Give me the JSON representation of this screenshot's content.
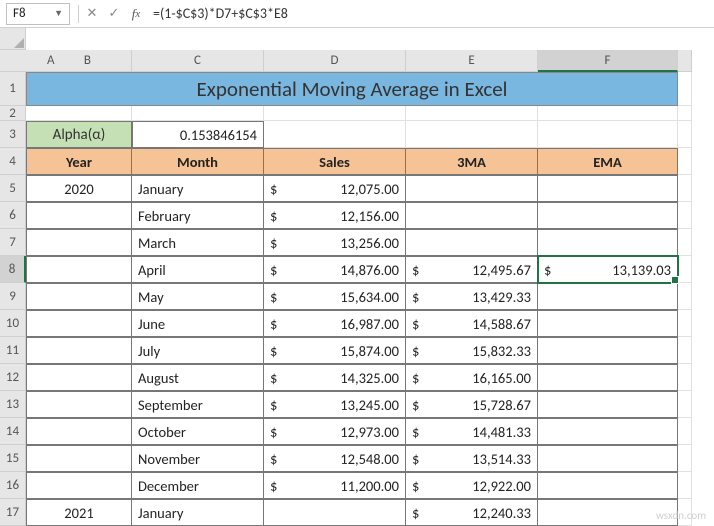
{
  "name_box": "F8",
  "formula": "=(1-$C$3)*D7+$C$3*E8",
  "columns": [
    "A",
    "B",
    "C",
    "D",
    "E",
    "F"
  ],
  "selected_col": "F",
  "selected_row": "8",
  "title": "Exponential Moving Average in Excel",
  "alpha": {
    "label": "Alpha(α)",
    "value": "0.153846154"
  },
  "headers": {
    "year": "Year",
    "month": "Month",
    "sales": "Sales",
    "ma": "3MA",
    "ema": "EMA"
  },
  "currency": "$",
  "rows": [
    {
      "n": 5,
      "year": "2020",
      "month": "January",
      "sales": "12,075.00",
      "ma": "",
      "ema": ""
    },
    {
      "n": 6,
      "year": "",
      "month": "February",
      "sales": "12,156.00",
      "ma": "",
      "ema": ""
    },
    {
      "n": 7,
      "year": "",
      "month": "March",
      "sales": "13,256.00",
      "ma": "",
      "ema": ""
    },
    {
      "n": 8,
      "year": "",
      "month": "April",
      "sales": "14,876.00",
      "ma": "12,495.67",
      "ema": "13,139.03"
    },
    {
      "n": 9,
      "year": "",
      "month": "May",
      "sales": "15,634.00",
      "ma": "13,429.33",
      "ema": ""
    },
    {
      "n": 10,
      "year": "",
      "month": "June",
      "sales": "16,987.00",
      "ma": "14,588.67",
      "ema": ""
    },
    {
      "n": 11,
      "year": "",
      "month": "July",
      "sales": "15,874.00",
      "ma": "15,832.33",
      "ema": ""
    },
    {
      "n": 12,
      "year": "",
      "month": "August",
      "sales": "14,325.00",
      "ma": "16,165.00",
      "ema": ""
    },
    {
      "n": 13,
      "year": "",
      "month": "September",
      "sales": "13,245.00",
      "ma": "15,728.67",
      "ema": ""
    },
    {
      "n": 14,
      "year": "",
      "month": "October",
      "sales": "12,973.00",
      "ma": "14,481.33",
      "ema": ""
    },
    {
      "n": 15,
      "year": "",
      "month": "November",
      "sales": "12,548.00",
      "ma": "13,514.33",
      "ema": ""
    },
    {
      "n": 16,
      "year": "",
      "month": "December",
      "sales": "11,200.00",
      "ma": "12,922.00",
      "ema": ""
    },
    {
      "n": 17,
      "year": "2021",
      "month": "January",
      "sales": "",
      "ma": "12,240.33",
      "ema": ""
    }
  ],
  "colors": {
    "title_bg": "#79b7e0",
    "alpha_bg": "#c5e0b4",
    "header_bg": "#f5c396",
    "grid": "#e0e0e0",
    "border": "#777777",
    "sel": "#217346"
  },
  "watermark": "wsxdn.com"
}
